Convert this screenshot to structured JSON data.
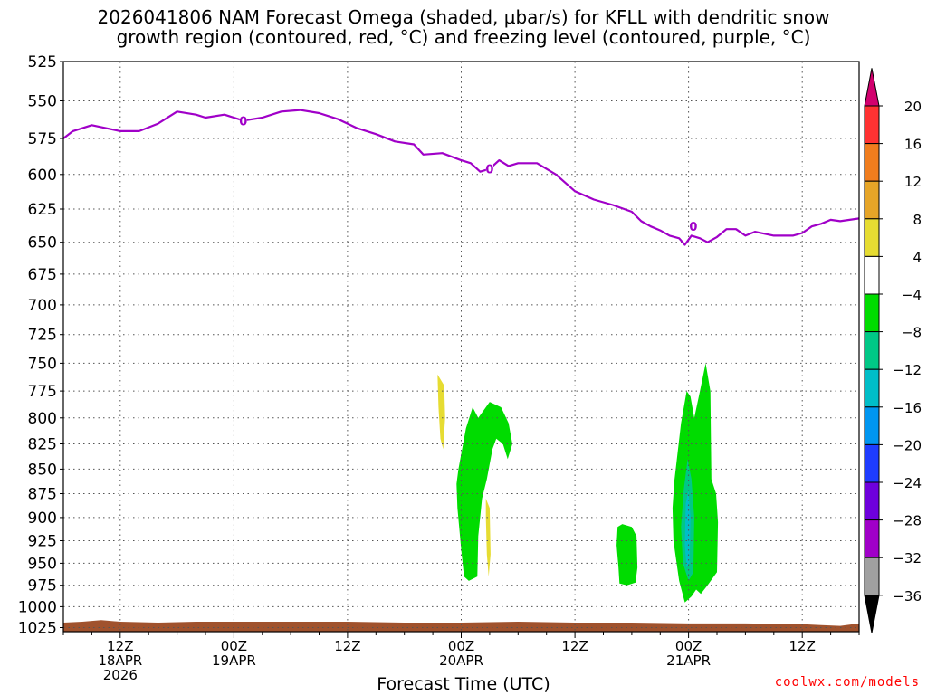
{
  "title": {
    "line1": "2026041806 NAM Forecast Omega (shaded, μbar/s) for KFLL with dendritic snow",
    "line2": "growth region (contoured, red, °C) and freezing level (contoured, purple, °C)"
  },
  "credit": "coolwx.com/models",
  "chart_data": {
    "type": "contour",
    "xlabel": "Forecast Time (UTC)",
    "ylabel": "",
    "x_range_hours": [
      0,
      84
    ],
    "y_scale": "pressure (inverted, log)",
    "y_range_hpa": [
      525,
      1030
    ],
    "y_ticks": [
      525,
      550,
      575,
      600,
      625,
      650,
      675,
      700,
      725,
      750,
      775,
      800,
      825,
      850,
      875,
      900,
      925,
      950,
      975,
      1000,
      1025
    ],
    "x_ticks": [
      {
        "hour": 6,
        "lines": [
          "12Z",
          "18APR",
          "2026"
        ]
      },
      {
        "hour": 18,
        "lines": [
          "00Z",
          "19APR"
        ]
      },
      {
        "hour": 30,
        "lines": [
          "12Z"
        ]
      },
      {
        "hour": 42,
        "lines": [
          "00Z",
          "20APR"
        ]
      },
      {
        "hour": 54,
        "lines": [
          "12Z"
        ]
      },
      {
        "hour": 66,
        "lines": [
          "00Z",
          "21APR"
        ]
      },
      {
        "hour": 78,
        "lines": [
          "12Z"
        ]
      }
    ],
    "grid": true,
    "freezing_level": {
      "color": "#a000c8",
      "contour_label": "0",
      "label_points": [
        {
          "hour": 19,
          "p": 563
        },
        {
          "hour": 45,
          "p": 596
        },
        {
          "hour": 66.5,
          "p": 638
        }
      ],
      "points": [
        [
          0,
          575
        ],
        [
          1,
          570
        ],
        [
          3,
          566
        ],
        [
          6,
          570
        ],
        [
          8,
          570
        ],
        [
          10,
          565
        ],
        [
          12,
          557
        ],
        [
          14,
          559
        ],
        [
          15,
          561
        ],
        [
          17,
          559
        ],
        [
          19,
          563
        ],
        [
          21,
          561
        ],
        [
          23,
          557
        ],
        [
          25,
          556
        ],
        [
          27,
          558
        ],
        [
          29,
          562
        ],
        [
          31,
          568
        ],
        [
          33,
          572
        ],
        [
          35,
          577
        ],
        [
          37,
          579
        ],
        [
          38,
          586
        ],
        [
          40,
          585
        ],
        [
          42,
          590
        ],
        [
          43,
          592
        ],
        [
          44,
          598
        ],
        [
          45,
          596
        ],
        [
          46,
          590
        ],
        [
          47,
          594
        ],
        [
          48,
          592
        ],
        [
          50,
          592
        ],
        [
          52,
          600
        ],
        [
          54,
          612
        ],
        [
          56,
          618
        ],
        [
          58,
          622
        ],
        [
          60,
          627
        ],
        [
          61,
          634
        ],
        [
          62,
          638
        ],
        [
          63,
          641
        ],
        [
          64,
          645
        ],
        [
          65,
          647
        ],
        [
          65.6,
          652
        ],
        [
          66.3,
          645
        ],
        [
          67.2,
          647
        ],
        [
          68,
          650
        ],
        [
          69,
          646
        ],
        [
          70,
          640
        ],
        [
          71,
          640
        ],
        [
          72,
          645
        ],
        [
          73,
          642
        ],
        [
          75,
          645
        ],
        [
          77,
          645
        ],
        [
          78,
          643
        ],
        [
          79,
          638
        ],
        [
          80,
          636
        ],
        [
          81,
          633
        ],
        [
          82,
          634
        ],
        [
          84,
          632
        ]
      ]
    },
    "omega_shading": [
      {
        "bin": "4 to 8",
        "color": "#e6dc32",
        "region": [
          [
            39.5,
            760
          ],
          [
            40.2,
            770
          ],
          [
            40.3,
            800
          ],
          [
            40.1,
            830
          ],
          [
            39.8,
            820
          ],
          [
            39.6,
            790
          ]
        ]
      },
      {
        "bin": "4 to 8",
        "color": "#e6dc32",
        "region": [
          [
            44.6,
            880
          ],
          [
            45.0,
            890
          ],
          [
            45.1,
            940
          ],
          [
            44.9,
            965
          ],
          [
            44.7,
            940
          ],
          [
            44.6,
            900
          ]
        ]
      },
      {
        "bin": "-8 to -4",
        "color": "#00dc00",
        "region": [
          [
            41.7,
            850
          ],
          [
            42.5,
            810
          ],
          [
            43.2,
            790
          ],
          [
            43.8,
            800
          ],
          [
            45.0,
            785
          ],
          [
            46.2,
            790
          ],
          [
            47.0,
            805
          ],
          [
            47.4,
            825
          ],
          [
            46.9,
            840
          ],
          [
            46.4,
            825
          ],
          [
            45.7,
            820
          ],
          [
            45.3,
            830
          ],
          [
            44.7,
            860
          ],
          [
            44.2,
            880
          ],
          [
            43.8,
            920
          ],
          [
            43.7,
            965
          ],
          [
            42.8,
            970
          ],
          [
            42.3,
            965
          ],
          [
            42.0,
            935
          ],
          [
            41.6,
            890
          ],
          [
            41.5,
            865
          ]
        ]
      },
      {
        "bin": "-8 to -4",
        "color": "#00dc00",
        "region": [
          [
            58.5,
            910
          ],
          [
            59.0,
            907
          ],
          [
            60.0,
            910
          ],
          [
            60.5,
            920
          ],
          [
            60.6,
            955
          ],
          [
            60.4,
            972
          ],
          [
            59.5,
            975
          ],
          [
            58.7,
            973
          ],
          [
            58.6,
            955
          ],
          [
            58.4,
            930
          ]
        ]
      },
      {
        "bin": "-8 to -4",
        "color": "#00dc00",
        "region": [
          [
            64.5,
            862
          ],
          [
            65.2,
            805
          ],
          [
            65.8,
            775
          ],
          [
            66.2,
            780
          ],
          [
            66.6,
            800
          ],
          [
            67.2,
            775
          ],
          [
            67.8,
            750
          ],
          [
            68.3,
            775
          ],
          [
            68.4,
            860
          ],
          [
            68.9,
            875
          ],
          [
            69.1,
            905
          ],
          [
            69.0,
            960
          ],
          [
            68.0,
            975
          ],
          [
            67.3,
            985
          ],
          [
            66.8,
            980
          ],
          [
            66.3,
            988
          ],
          [
            65.6,
            995
          ],
          [
            65.0,
            970
          ],
          [
            64.4,
            925
          ],
          [
            64.3,
            890
          ]
        ]
      },
      {
        "bin": "-12 to -8",
        "color": "#00c886",
        "region": [
          [
            65.5,
            870
          ],
          [
            65.9,
            840
          ],
          [
            66.3,
            860
          ],
          [
            66.6,
            900
          ],
          [
            66.5,
            960
          ],
          [
            66.0,
            970
          ],
          [
            65.4,
            950
          ],
          [
            65.2,
            910
          ]
        ]
      },
      {
        "bin": "-16 to -12",
        "color": "#00bec8",
        "region": [
          [
            65.7,
            885
          ],
          [
            66.0,
            872
          ],
          [
            66.2,
            900
          ],
          [
            66.1,
            950
          ],
          [
            65.8,
            955
          ],
          [
            65.6,
            930
          ]
        ]
      }
    ],
    "ground": {
      "color": "#a0522d",
      "label": "terrain below surface"
    }
  },
  "colorbar": {
    "labels": [
      "20",
      "16",
      "12",
      "8",
      "4",
      "−4",
      "−8",
      "−12",
      "−16",
      "−20",
      "−24",
      "−28",
      "−32",
      "−36"
    ],
    "colors": [
      "#d2006e",
      "#ff3232",
      "#f07d1e",
      "#e6a528",
      "#e6dc32",
      "#ffffff",
      "#00dc00",
      "#00c886",
      "#00bec8",
      "#0096f0",
      "#1e3cff",
      "#6e00dc",
      "#a000c8",
      "#a0a0a0",
      "#000000"
    ]
  }
}
